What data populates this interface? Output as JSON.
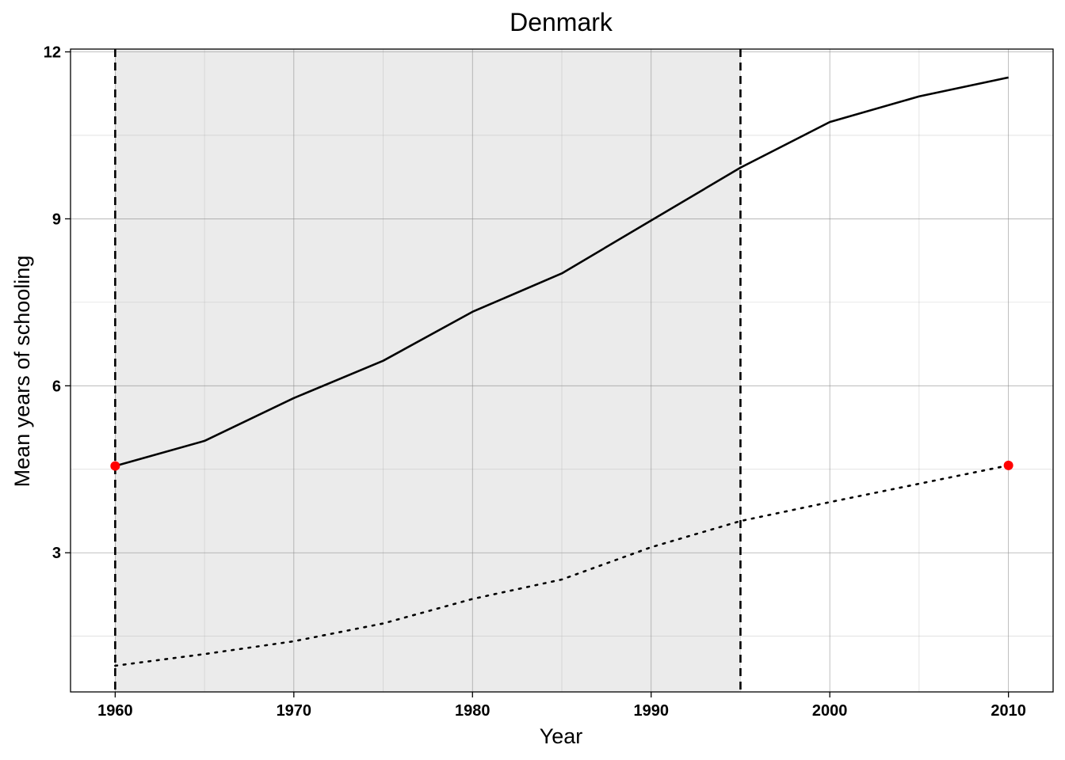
{
  "chart_data": {
    "type": "line",
    "title": "Denmark",
    "xlabel": "Year",
    "ylabel": "Mean years of schooling",
    "xlim": [
      1957.5,
      2012.5
    ],
    "ylim": [
      0.5,
      12.05
    ],
    "x_ticks": [
      1960,
      1970,
      1980,
      1990,
      2000,
      2010
    ],
    "y_ticks": [
      3,
      6,
      9,
      12
    ],
    "grid": true,
    "legend": "none",
    "shaded_region": {
      "x_start": 1960,
      "x_end": 1995,
      "color": "#ebebeb"
    },
    "vlines": [
      {
        "x": 1960,
        "style": "dashed"
      },
      {
        "x": 1995,
        "style": "dashed"
      }
    ],
    "series": [
      {
        "style": "solid",
        "color": "#000000",
        "x": [
          1960,
          1965,
          1970,
          1975,
          1980,
          1985,
          1990,
          1995,
          2000,
          2005,
          2010
        ],
        "values": [
          4.56,
          5.01,
          5.78,
          6.45,
          7.33,
          8.02,
          8.97,
          9.92,
          10.74,
          11.2,
          11.54
        ]
      },
      {
        "style": "dotted",
        "color": "#000000",
        "x": [
          1960,
          1965,
          1970,
          1975,
          1980,
          1985,
          1990,
          1995,
          2000,
          2005,
          2010
        ],
        "values": [
          0.97,
          1.18,
          1.41,
          1.73,
          2.17,
          2.52,
          3.1,
          3.57,
          3.91,
          4.24,
          4.57
        ]
      }
    ],
    "highlight_points": [
      {
        "x": 1960,
        "y": 4.56,
        "color": "#ff0000"
      },
      {
        "x": 2010,
        "y": 4.57,
        "color": "#ff0000"
      }
    ]
  }
}
